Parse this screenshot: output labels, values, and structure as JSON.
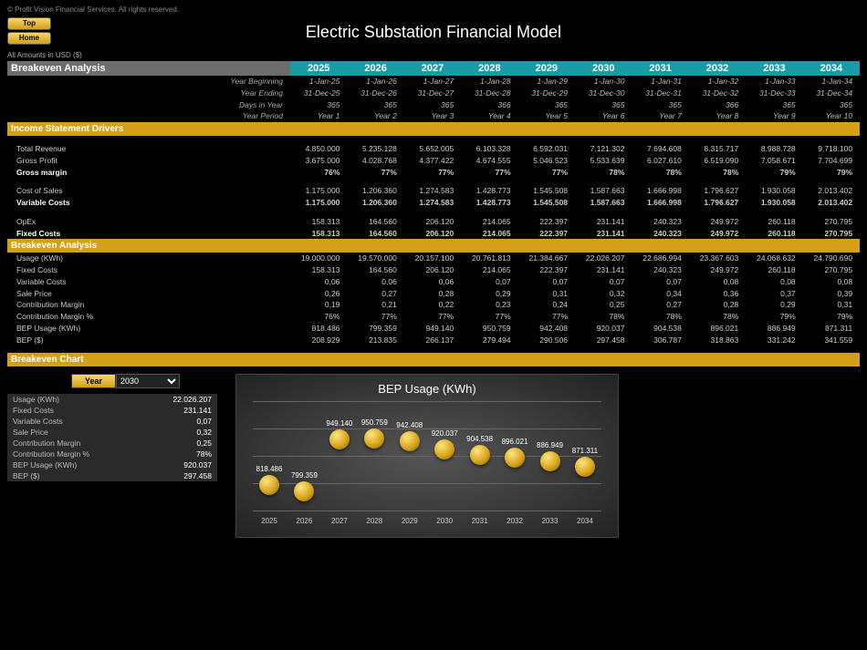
{
  "copyright": "© Profit Vision Financial Services. All rights reserved.",
  "nav": {
    "top": "Top",
    "home": "Home"
  },
  "title": "Electric Substation Financial Model",
  "currency_note": "All Amounts in  USD ($)",
  "colors": {
    "teal": "#1a9ba8",
    "gold": "#d4a017",
    "grey": "#6d6d6d",
    "bg": "#000000"
  },
  "years": [
    "2025",
    "2026",
    "2027",
    "2028",
    "2029",
    "2030",
    "2031",
    "2032",
    "2033",
    "2034"
  ],
  "section_labels": {
    "breakeven_analysis": "Breakeven Analysis",
    "income_drivers": "Income Statement Drivers",
    "breakeven_chart": "Breakeven Chart"
  },
  "meta_rows": [
    {
      "label": "Year Beginning",
      "vals": [
        "1-Jan-25",
        "1-Jan-26",
        "1-Jan-27",
        "1-Jan-28",
        "1-Jan-29",
        "1-Jan-30",
        "1-Jan-31",
        "1-Jan-32",
        "1-Jan-33",
        "1-Jan-34"
      ]
    },
    {
      "label": "Year Ending",
      "vals": [
        "31-Dec-25",
        "31-Dec-26",
        "31-Dec-27",
        "31-Dec-28",
        "31-Dec-29",
        "31-Dec-30",
        "31-Dec-31",
        "31-Dec-32",
        "31-Dec-33",
        "31-Dec-34"
      ]
    },
    {
      "label": "Days in Year",
      "vals": [
        "365",
        "365",
        "365",
        "366",
        "365",
        "365",
        "365",
        "366",
        "365",
        "365"
      ]
    },
    {
      "label": "Year Period",
      "vals": [
        "Year 1",
        "Year 2",
        "Year 3",
        "Year 4",
        "Year 5",
        "Year 6",
        "Year 7",
        "Year 8",
        "Year 9",
        "Year 10"
      ]
    }
  ],
  "income_rows": [
    {
      "label": "Total Revenue",
      "bold": false,
      "vals": [
        "4.850.000",
        "5.235.128",
        "5.652.005",
        "6.103.328",
        "6.592.031",
        "7.121.302",
        "7.694.608",
        "8.315.717",
        "8.988.728",
        "9.718.100"
      ]
    },
    {
      "label": "Gross Profit",
      "bold": false,
      "vals": [
        "3.675.000",
        "4.028.768",
        "4.377.422",
        "4.674.555",
        "5.046.523",
        "5.533.639",
        "6.027.610",
        "6.519.090",
        "7.058.671",
        "7.704.699"
      ]
    },
    {
      "label": "Gross margin",
      "bold": true,
      "vals": [
        "76%",
        "77%",
        "77%",
        "77%",
        "77%",
        "78%",
        "78%",
        "78%",
        "79%",
        "79%"
      ]
    }
  ],
  "cost_rows": [
    {
      "label": "Cost of Sales",
      "bold": false,
      "vals": [
        "1.175.000",
        "1.206.360",
        "1.274.583",
        "1.428.773",
        "1.545.508",
        "1.587.663",
        "1.666.998",
        "1.796.627",
        "1.930.058",
        "2.013.402"
      ]
    },
    {
      "label": "Variable Costs",
      "bold": true,
      "vals": [
        "1.175.000",
        "1.206.360",
        "1.274.583",
        "1.428.773",
        "1.545.508",
        "1.587.663",
        "1.666.998",
        "1.796.627",
        "1.930.058",
        "2.013.402"
      ]
    }
  ],
  "opex_rows": [
    {
      "label": "OpEx",
      "bold": false,
      "vals": [
        "158.313",
        "164.560",
        "206.120",
        "214.065",
        "222.397",
        "231.141",
        "240.323",
        "249.972",
        "260.118",
        "270.795"
      ]
    },
    {
      "label": "Fixed Costs",
      "bold": true,
      "vals": [
        "158.313",
        "164.560",
        "206.120",
        "214.065",
        "222.397",
        "231.141",
        "240.323",
        "249.972",
        "260.118",
        "270.795"
      ]
    }
  ],
  "breakeven_rows": [
    {
      "label": "Usage (KWh)",
      "vals": [
        "19.000.000",
        "19.570.000",
        "20.157.100",
        "20.761.813",
        "21.384.667",
        "22.026.207",
        "22.686.994",
        "23.367.603",
        "24.068.632",
        "24.790.690"
      ]
    },
    {
      "label": "Fixed Costs",
      "vals": [
        "158.313",
        "164.560",
        "206.120",
        "214.065",
        "222.397",
        "231.141",
        "240.323",
        "249.972",
        "260.118",
        "270.795"
      ]
    },
    {
      "label": "Variable Costs",
      "vals": [
        "0,06",
        "0,06",
        "0,06",
        "0,07",
        "0,07",
        "0,07",
        "0,07",
        "0,08",
        "0,08",
        "0,08"
      ]
    },
    {
      "label": "Sale Price",
      "vals": [
        "0,26",
        "0,27",
        "0,28",
        "0,29",
        "0,31",
        "0,32",
        "0,34",
        "0,36",
        "0,37",
        "0,39"
      ]
    },
    {
      "label": "Contribution Margin",
      "vals": [
        "0,19",
        "0,21",
        "0,22",
        "0,23",
        "0,24",
        "0,25",
        "0,27",
        "0,28",
        "0,29",
        "0,31"
      ]
    },
    {
      "label": "Contribution Margin %",
      "vals": [
        "76%",
        "77%",
        "77%",
        "77%",
        "77%",
        "78%",
        "78%",
        "78%",
        "79%",
        "79%"
      ]
    },
    {
      "label": "BEP Usage (KWh)",
      "vals": [
        "818.486",
        "799.359",
        "949.140",
        "950.759",
        "942.408",
        "920.037",
        "904.538",
        "896.021",
        "886.949",
        "871.311"
      ]
    },
    {
      "label": "BEP ($)",
      "vals": [
        "208.929",
        "213.835",
        "266.137",
        "279.494",
        "290.506",
        "297.458",
        "306.787",
        "318.863",
        "331.242",
        "341.559"
      ]
    }
  ],
  "chart": {
    "year_label": "Year",
    "selected_year": "2030",
    "title": "BEP Usage (KWh)",
    "y_max": 1000000,
    "y_min": 750000,
    "summary": [
      {
        "label": "Usage (KWh)",
        "val": "22.026.207"
      },
      {
        "label": "Fixed Costs",
        "val": "231.141"
      },
      {
        "label": "Variable Costs",
        "val": "0,07"
      },
      {
        "label": "Sale Price",
        "val": "0,32"
      },
      {
        "label": "Contribution Margin",
        "val": "0,25"
      },
      {
        "label": "Contribution Margin %",
        "val": "78%"
      },
      {
        "label": "BEP Usage (KWh)",
        "val": "920.037"
      },
      {
        "label": "BEP ($)",
        "val": "297.458"
      }
    ],
    "bars": [
      {
        "x": "2025",
        "label": "818.486",
        "v": 818486
      },
      {
        "x": "2026",
        "label": "799.359",
        "v": 799359
      },
      {
        "x": "2027",
        "label": "949.140",
        "v": 949140
      },
      {
        "x": "2028",
        "label": "950.759",
        "v": 950759
      },
      {
        "x": "2029",
        "label": "942.408",
        "v": 942408
      },
      {
        "x": "2030",
        "label": "920.037",
        "v": 920037
      },
      {
        "x": "2031",
        "label": "904.538",
        "v": 904538
      },
      {
        "x": "2032",
        "label": "896.021",
        "v": 896021
      },
      {
        "x": "2033",
        "label": "886.949",
        "v": 886949
      },
      {
        "x": "2034",
        "label": "871.311",
        "v": 871311
      }
    ]
  }
}
